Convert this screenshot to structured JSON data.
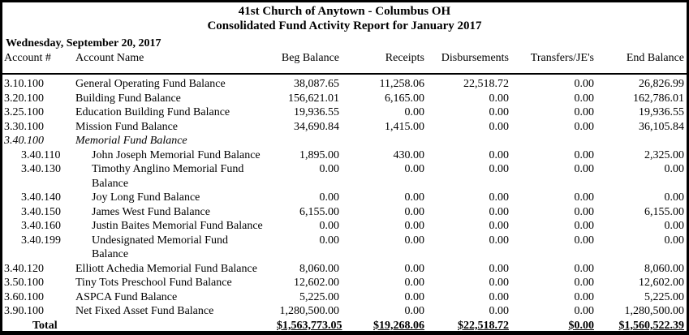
{
  "report": {
    "title_line1": "41st Church of Anytown - Columbus OH",
    "title_line2": "Consolidated Fund Activity Report for January 2017",
    "date": "Wednesday, September 20, 2017"
  },
  "table": {
    "columns": [
      "Account #",
      "Account Name",
      "Beg Balance",
      "Receipts",
      "Disbursements",
      "Transfers/JE's",
      "End Balance"
    ],
    "rows": [
      {
        "account": "3.10.100",
        "name": "General Operating Fund Balance",
        "indent": false,
        "italic": false,
        "beg": "38,087.65",
        "receipts": "11,258.06",
        "disbursements": "22,518.72",
        "transfers": "0.00",
        "end": "26,826.99"
      },
      {
        "account": "3.20.100",
        "name": "Building Fund Balance",
        "indent": false,
        "italic": false,
        "beg": "156,621.01",
        "receipts": "6,165.00",
        "disbursements": "0.00",
        "transfers": "0.00",
        "end": "162,786.01"
      },
      {
        "account": "3.25.100",
        "name": "Education Building Fund Balance",
        "indent": false,
        "italic": false,
        "beg": "19,936.55",
        "receipts": "0.00",
        "disbursements": "0.00",
        "transfers": "0.00",
        "end": "19,936.55"
      },
      {
        "account": "3.30.100",
        "name": "Mission Fund Balance",
        "indent": false,
        "italic": false,
        "beg": "34,690.84",
        "receipts": "1,415.00",
        "disbursements": "0.00",
        "transfers": "0.00",
        "end": "36,105.84"
      },
      {
        "account": "3.40.100",
        "name": "Memorial Fund Balance",
        "indent": false,
        "italic": true,
        "beg": "",
        "receipts": "",
        "disbursements": "",
        "transfers": "",
        "end": ""
      },
      {
        "account": "3.40.110",
        "name": "John Joseph Memorial Fund Balance",
        "indent": true,
        "italic": false,
        "beg": "1,895.00",
        "receipts": "430.00",
        "disbursements": "0.00",
        "transfers": "0.00",
        "end": "2,325.00"
      },
      {
        "account": "3.40.130",
        "name": "Timothy Anglino Memorial Fund\nBalance",
        "indent": true,
        "italic": false,
        "beg": "0.00",
        "receipts": "0.00",
        "disbursements": "0.00",
        "transfers": "0.00",
        "end": "0.00"
      },
      {
        "account": "3.40.140",
        "name": "Joy Long Fund Balance",
        "indent": true,
        "italic": false,
        "beg": "0.00",
        "receipts": "0.00",
        "disbursements": "0.00",
        "transfers": "0.00",
        "end": "0.00"
      },
      {
        "account": "3.40.150",
        "name": "James West Fund Balance",
        "indent": true,
        "italic": false,
        "beg": "6,155.00",
        "receipts": "0.00",
        "disbursements": "0.00",
        "transfers": "0.00",
        "end": "6,155.00"
      },
      {
        "account": "3.40.160",
        "name": "Justin Baites Memorial Fund Balance",
        "indent": true,
        "italic": false,
        "beg": "0.00",
        "receipts": "0.00",
        "disbursements": "0.00",
        "transfers": "0.00",
        "end": "0.00"
      },
      {
        "account": "3.40.199",
        "name": "Undesignated Memorial Fund\nBalance",
        "indent": true,
        "italic": false,
        "beg": "0.00",
        "receipts": "0.00",
        "disbursements": "0.00",
        "transfers": "0.00",
        "end": "0.00"
      },
      {
        "account": "3.40.120",
        "name": "Elliott Achedia Memorial Fund Balance",
        "indent": false,
        "italic": false,
        "beg": "8,060.00",
        "receipts": "0.00",
        "disbursements": "0.00",
        "transfers": "0.00",
        "end": "8,060.00"
      },
      {
        "account": "3.50.100",
        "name": "Tiny Tots Preschool Fund Balance",
        "indent": false,
        "italic": false,
        "beg": "12,602.00",
        "receipts": "0.00",
        "disbursements": "0.00",
        "transfers": "0.00",
        "end": "12,602.00"
      },
      {
        "account": "3.60.100",
        "name": "ASPCA Fund Balance",
        "indent": false,
        "italic": false,
        "beg": "5,225.00",
        "receipts": "0.00",
        "disbursements": "0.00",
        "transfers": "0.00",
        "end": "5,225.00"
      },
      {
        "account": "3.90.100",
        "name": "Net Fixed Asset Fund Balance",
        "indent": false,
        "italic": false,
        "beg": "1,280,500.00",
        "receipts": "0.00",
        "disbursements": "0.00",
        "transfers": "0.00",
        "end": "1,280,500.00"
      }
    ],
    "total": {
      "label": "Total",
      "beg": "$1,563,773.05",
      "receipts": "$19,268.06",
      "disbursements": "$22,518.72",
      "transfers": "$0.00",
      "end": "$1,560,522.39"
    }
  }
}
